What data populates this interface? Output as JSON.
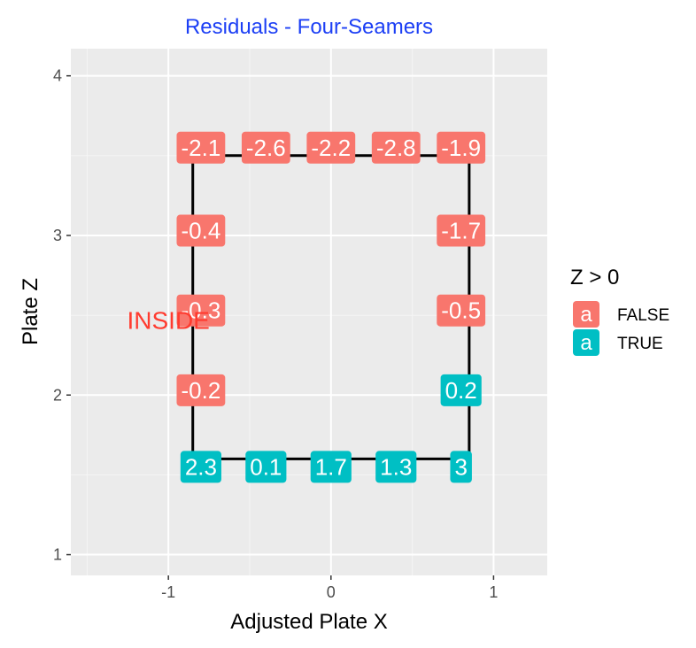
{
  "chart_data": {
    "type": "scatter",
    "title": "Residuals - Four-Seamers",
    "xlabel": "Adjusted Plate X",
    "ylabel": "Plate Z",
    "xlim": [
      -1.6,
      1.33
    ],
    "ylim": [
      0.87,
      4.17
    ],
    "x_ticks": [
      -1,
      0,
      1
    ],
    "y_ticks": [
      1,
      2,
      3,
      4
    ],
    "grid": true,
    "legend": {
      "title": "Z > 0",
      "position": "right",
      "glyph": "a",
      "entries": [
        {
          "label": "FALSE",
          "color": "#F8766D"
        },
        {
          "label": "TRUE",
          "color": "#00BFC4"
        }
      ]
    },
    "strike_zone": {
      "x": [
        -0.85,
        0.85
      ],
      "z": [
        1.6,
        3.5
      ]
    },
    "annotation": {
      "text": "INSIDE",
      "x": -1.0,
      "y": 2.47,
      "color": "#FF3B2F"
    },
    "title_color": "#1C3FF5",
    "points": [
      {
        "x": -0.8,
        "y": 3.55,
        "label": "-2.1",
        "positive": false
      },
      {
        "x": -0.4,
        "y": 3.55,
        "label": "-2.6",
        "positive": false
      },
      {
        "x": 0.0,
        "y": 3.55,
        "label": "-2.2",
        "positive": false
      },
      {
        "x": 0.4,
        "y": 3.55,
        "label": "-2.8",
        "positive": false
      },
      {
        "x": 0.8,
        "y": 3.55,
        "label": "-1.9",
        "positive": false
      },
      {
        "x": -0.8,
        "y": 3.03,
        "label": "-0.4",
        "positive": false
      },
      {
        "x": 0.8,
        "y": 3.03,
        "label": "-1.7",
        "positive": false
      },
      {
        "x": -0.8,
        "y": 2.53,
        "label": "-0.3",
        "positive": false
      },
      {
        "x": 0.8,
        "y": 2.53,
        "label": "-0.5",
        "positive": false
      },
      {
        "x": -0.8,
        "y": 2.03,
        "label": "-0.2",
        "positive": false
      },
      {
        "x": 0.8,
        "y": 2.03,
        "label": "0.2",
        "positive": true
      },
      {
        "x": -0.8,
        "y": 1.55,
        "label": "2.3",
        "positive": true
      },
      {
        "x": -0.4,
        "y": 1.55,
        "label": "0.1",
        "positive": true
      },
      {
        "x": 0.0,
        "y": 1.55,
        "label": "1.7",
        "positive": true
      },
      {
        "x": 0.4,
        "y": 1.55,
        "label": "1.3",
        "positive": true
      },
      {
        "x": 0.8,
        "y": 1.55,
        "label": "3",
        "positive": true
      }
    ]
  }
}
